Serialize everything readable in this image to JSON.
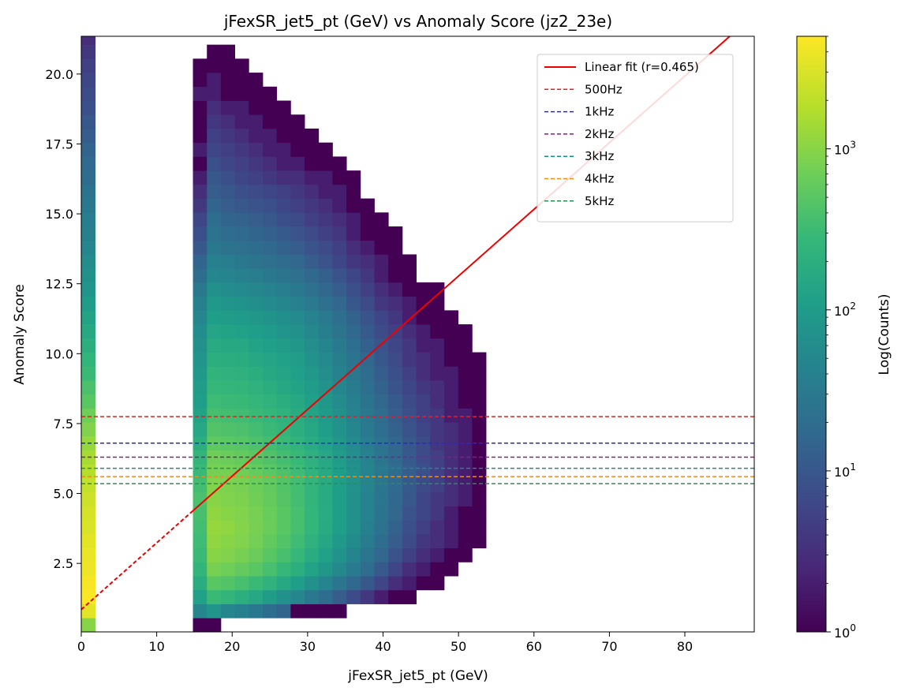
{
  "chart_data": {
    "type": "heatmap",
    "title": "jFexSR_jet5_pt (GeV) vs Anomaly Score (jz2_23e)",
    "xlabel": "jFexSR_jet5_pt (GeV)",
    "ylabel": "Anomaly Score",
    "colorbar_label": "Log(Counts)",
    "colorscale": "viridis",
    "color_scale_type": "log",
    "color_range": [
      1,
      5000
    ],
    "xlim": [
      0,
      89.2
    ],
    "ylim": [
      0.05,
      21.35
    ],
    "x_ticks": [
      0,
      10,
      20,
      30,
      40,
      50,
      60,
      70,
      80
    ],
    "x_tick_labels": [
      "0",
      "10",
      "20",
      "30",
      "40",
      "50",
      "60",
      "70",
      "80"
    ],
    "y_ticks": [
      2.5,
      5.0,
      7.5,
      10.0,
      12.5,
      15.0,
      17.5,
      20.0
    ],
    "y_tick_labels": [
      "2.5",
      "5.0",
      "7.5",
      "10.0",
      "12.5",
      "15.0",
      "17.5",
      "20.0"
    ],
    "colorbar_ticks": [
      1,
      10,
      100,
      1000
    ],
    "colorbar_tick_labels": [
      {
        "base": "10",
        "exp": "0"
      },
      {
        "base": "10",
        "exp": "1"
      },
      {
        "base": "10",
        "exp": "2"
      },
      {
        "base": "10",
        "exp": "3"
      }
    ],
    "bin_width_x": 1.85,
    "bin_height_y": 0.5,
    "columns": [
      {
        "x0": 0,
        "y_bottom": 0.05,
        "counts": [
          1000,
          3500,
          4800,
          4500,
          4000,
          3800,
          3500,
          3000,
          2800,
          2500,
          2200,
          1800,
          1500,
          1200,
          900,
          700,
          500,
          400,
          300,
          250,
          200,
          160,
          130,
          100,
          80,
          70,
          60,
          50,
          40,
          35,
          30,
          25,
          20,
          18,
          15,
          12,
          10,
          8,
          7,
          6,
          5,
          4,
          3,
          2
        ]
      },
      {
        "x0": 14.8,
        "y_bottom": 0.05,
        "counts": [
          1,
          50,
          120,
          180,
          250,
          300,
          320,
          350,
          380,
          400,
          350,
          300,
          250,
          200,
          150,
          130,
          110,
          100,
          90,
          80,
          70,
          60,
          50,
          40,
          30,
          20,
          15,
          10,
          8,
          6,
          4,
          3,
          2,
          1,
          2,
          1,
          1,
          1,
          2,
          1,
          1,
          0,
          0,
          0
        ]
      },
      {
        "x0": 16.65,
        "y_bottom": 0.05,
        "counts": [
          1,
          80,
          300,
          500,
          800,
          1000,
          1100,
          1200,
          1100,
          1000,
          900,
          800,
          700,
          550,
          450,
          380,
          320,
          280,
          240,
          200,
          170,
          140,
          110,
          90,
          70,
          50,
          40,
          30,
          25,
          20,
          15,
          12,
          10,
          8,
          6,
          5,
          4,
          3,
          2,
          2,
          1,
          1,
          0,
          0
        ]
      },
      {
        "x0": 18.5,
        "y_bottom": 0.05,
        "counts": [
          0,
          50,
          250,
          450,
          700,
          900,
          1000,
          1100,
          1000,
          900,
          850,
          780,
          650,
          520,
          420,
          360,
          300,
          260,
          220,
          190,
          160,
          130,
          100,
          80,
          60,
          45,
          35,
          25,
          20,
          15,
          12,
          10,
          8,
          6,
          5,
          4,
          3,
          2,
          1,
          1,
          1,
          1,
          0,
          0
        ]
      },
      {
        "x0": 20.35,
        "y_bottom": 0.05,
        "counts": [
          0,
          40,
          200,
          380,
          600,
          800,
          900,
          950,
          900,
          850,
          800,
          720,
          600,
          480,
          400,
          340,
          290,
          250,
          210,
          180,
          150,
          120,
          95,
          75,
          55,
          40,
          30,
          22,
          18,
          14,
          10,
          8,
          6,
          5,
          4,
          3,
          2,
          2,
          1,
          1,
          1,
          0,
          0,
          0
        ]
      },
      {
        "x0": 22.2,
        "y_bottom": 0.05,
        "counts": [
          0,
          30,
          150,
          300,
          500,
          650,
          750,
          800,
          780,
          720,
          680,
          620,
          520,
          420,
          350,
          300,
          260,
          220,
          190,
          160,
          130,
          110,
          85,
          65,
          50,
          35,
          25,
          20,
          15,
          12,
          9,
          7,
          5,
          4,
          3,
          2,
          2,
          1,
          1,
          1,
          0,
          0,
          0,
          0
        ]
      },
      {
        "x0": 24.05,
        "y_bottom": 0.05,
        "counts": [
          0,
          20,
          100,
          220,
          380,
          500,
          580,
          650,
          640,
          600,
          570,
          520,
          440,
          360,
          300,
          260,
          220,
          190,
          160,
          140,
          115,
          95,
          75,
          55,
          42,
          30,
          22,
          17,
          13,
          10,
          8,
          6,
          4,
          3,
          2,
          2,
          1,
          1,
          1,
          0,
          0,
          0,
          0,
          0
        ]
      },
      {
        "x0": 25.9,
        "y_bottom": 0.05,
        "counts": [
          0,
          15,
          70,
          160,
          280,
          380,
          450,
          500,
          500,
          470,
          450,
          420,
          360,
          300,
          250,
          220,
          190,
          160,
          140,
          120,
          100,
          80,
          65,
          48,
          36,
          26,
          19,
          14,
          11,
          8,
          6,
          5,
          3,
          2,
          2,
          1,
          1,
          1,
          0,
          0,
          0,
          0,
          0,
          0
        ]
      },
      {
        "x0": 27.75,
        "y_bottom": 0.05,
        "counts": [
          0,
          1,
          50,
          110,
          200,
          280,
          330,
          380,
          380,
          360,
          350,
          330,
          290,
          240,
          200,
          180,
          155,
          130,
          115,
          100,
          85,
          68,
          55,
          40,
          30,
          22,
          16,
          12,
          9,
          7,
          5,
          4,
          3,
          2,
          1,
          1,
          1,
          0,
          0,
          0,
          0,
          0,
          0,
          0
        ]
      },
      {
        "x0": 29.6,
        "y_bottom": 0.05,
        "counts": [
          0,
          1,
          30,
          70,
          130,
          180,
          220,
          260,
          260,
          250,
          245,
          235,
          210,
          175,
          150,
          135,
          118,
          100,
          88,
          75,
          64,
          52,
          42,
          31,
          23,
          17,
          12,
          9,
          7,
          5,
          4,
          3,
          2,
          1,
          1,
          1,
          0,
          0,
          0,
          0,
          0,
          0,
          0,
          0
        ]
      },
      {
        "x0": 31.45,
        "y_bottom": 0.05,
        "counts": [
          0,
          1,
          20,
          45,
          85,
          120,
          145,
          170,
          175,
          170,
          170,
          165,
          150,
          125,
          108,
          98,
          86,
          73,
          64,
          55,
          47,
          38,
          31,
          23,
          17,
          13,
          9,
          7,
          5,
          4,
          3,
          2,
          2,
          1,
          1,
          0,
          0,
          0,
          0,
          0,
          0,
          0,
          0,
          0
        ]
      },
      {
        "x0": 33.3,
        "y_bottom": 0.05,
        "counts": [
          0,
          1,
          12,
          28,
          52,
          75,
          92,
          108,
          112,
          110,
          112,
          110,
          100,
          85,
          74,
          67,
          59,
          50,
          44,
          38,
          32,
          26,
          21,
          16,
          12,
          9,
          6,
          5,
          4,
          3,
          2,
          2,
          1,
          1,
          0,
          0,
          0,
          0,
          0,
          0,
          0,
          0,
          0,
          0
        ]
      },
      {
        "x0": 35.15,
        "y_bottom": 0.05,
        "counts": [
          0,
          0,
          7,
          17,
          32,
          46,
          57,
          67,
          70,
          70,
          72,
          71,
          65,
          56,
          49,
          44,
          39,
          33,
          29,
          25,
          21,
          17,
          14,
          10,
          8,
          6,
          4,
          3,
          2,
          2,
          1,
          1,
          1,
          0,
          0,
          0,
          0,
          0,
          0,
          0,
          0,
          0,
          0,
          0
        ]
      },
      {
        "x0": 37.0,
        "y_bottom": 0.05,
        "counts": [
          0,
          0,
          4,
          10,
          19,
          27,
          34,
          40,
          42,
          43,
          45,
          45,
          42,
          36,
          32,
          29,
          25,
          21,
          19,
          16,
          13,
          11,
          9,
          7,
          5,
          4,
          3,
          2,
          1,
          1,
          1,
          0,
          0,
          0,
          0,
          0,
          0,
          0,
          0,
          0,
          0,
          0,
          0,
          0
        ]
      },
      {
        "x0": 38.85,
        "y_bottom": 0.05,
        "counts": [
          0,
          0,
          2,
          6,
          11,
          16,
          20,
          24,
          26,
          27,
          28,
          29,
          27,
          24,
          21,
          19,
          16,
          14,
          12,
          10,
          9,
          7,
          6,
          4,
          3,
          2,
          2,
          1,
          1,
          1,
          0,
          0,
          0,
          0,
          0,
          0,
          0,
          0,
          0,
          0,
          0,
          0,
          0,
          0
        ]
      },
      {
        "x0": 40.7,
        "y_bottom": 0.05,
        "counts": [
          0,
          0,
          1,
          3,
          6,
          9,
          12,
          14,
          16,
          17,
          18,
          19,
          18,
          16,
          14,
          12,
          11,
          9,
          8,
          7,
          6,
          5,
          4,
          3,
          2,
          1,
          1,
          1,
          1,
          0,
          0,
          0,
          0,
          0,
          0,
          0,
          0,
          0,
          0,
          0,
          0,
          0,
          0,
          0
        ]
      },
      {
        "x0": 42.55,
        "y_bottom": 0.05,
        "counts": [
          0,
          0,
          1,
          2,
          3,
          5,
          7,
          8,
          9,
          10,
          11,
          12,
          11,
          10,
          9,
          8,
          7,
          6,
          5,
          4,
          4,
          3,
          2,
          2,
          1,
          1,
          1,
          0,
          0,
          0,
          0,
          0,
          0,
          0,
          0,
          0,
          0,
          0,
          0,
          0,
          0,
          0,
          0,
          0
        ]
      },
      {
        "x0": 44.4,
        "y_bottom": 0.05,
        "counts": [
          0,
          0,
          0,
          1,
          2,
          3,
          4,
          5,
          6,
          6,
          7,
          8,
          7,
          7,
          6,
          5,
          5,
          4,
          3,
          3,
          2,
          2,
          1,
          1,
          1,
          0,
          0,
          0,
          0,
          0,
          0,
          0,
          0,
          0,
          0,
          0,
          0,
          0,
          0,
          0,
          0,
          0,
          0,
          0
        ]
      },
      {
        "x0": 46.25,
        "y_bottom": 0.05,
        "counts": [
          0,
          0,
          0,
          1,
          1,
          2,
          3,
          3,
          4,
          4,
          5,
          5,
          5,
          4,
          4,
          4,
          3,
          3,
          2,
          2,
          2,
          1,
          1,
          1,
          1,
          0,
          0,
          0,
          0,
          0,
          0,
          0,
          0,
          0,
          0,
          0,
          0,
          0,
          0,
          0,
          0,
          0,
          0,
          0
        ]
      },
      {
        "x0": 48.1,
        "y_bottom": 0.05,
        "counts": [
          0,
          0,
          0,
          0,
          1,
          1,
          2,
          2,
          2,
          3,
          3,
          3,
          3,
          3,
          3,
          2,
          2,
          2,
          2,
          1,
          1,
          1,
          1,
          0,
          0,
          0,
          0,
          0,
          0,
          0,
          0,
          0,
          0,
          0,
          0,
          0,
          0,
          0,
          0,
          0,
          0,
          0,
          0,
          0
        ]
      },
      {
        "x0": 49.95,
        "y_bottom": 0.05,
        "counts": [
          0,
          0,
          0,
          0,
          0,
          1,
          1,
          1,
          1,
          2,
          2,
          2,
          2,
          2,
          2,
          2,
          1,
          1,
          1,
          1,
          1,
          1,
          0,
          0,
          0,
          0,
          0,
          0,
          0,
          0,
          0,
          0,
          0,
          0,
          0,
          0,
          0,
          0,
          0,
          0,
          0,
          0,
          0,
          0
        ]
      },
      {
        "x0": 51.8,
        "y_bottom": 0.05,
        "counts": [
          0,
          0,
          0,
          0,
          0,
          0,
          1,
          1,
          1,
          1,
          1,
          1,
          1,
          1,
          1,
          1,
          1,
          1,
          1,
          1,
          0,
          0,
          0,
          0,
          0,
          0,
          0,
          0,
          0,
          0,
          0,
          0,
          0,
          0,
          0,
          0,
          0,
          0,
          0,
          0,
          0,
          0,
          0,
          0
        ]
      }
    ],
    "overlay_lines": [
      {
        "name": "Linear fit (r=0.465)",
        "type": "fit",
        "color": "#ee0000",
        "style": "solid",
        "intercept": 0.85,
        "slope": 0.2385,
        "dashed_below_x": 14.8
      },
      {
        "name": "500Hz",
        "type": "threshold",
        "y": 7.75,
        "color": "#ee1c1c",
        "style": "dashed"
      },
      {
        "name": "1kHz",
        "type": "threshold",
        "y": 6.8,
        "color": "#2424e6",
        "style": "dashed"
      },
      {
        "name": "2kHz",
        "type": "threshold",
        "y": 6.3,
        "color": "#8b1a8b",
        "style": "dashed"
      },
      {
        "name": "3kHz",
        "type": "threshold",
        "y": 5.9,
        "color": "#1a8a8a",
        "style": "dashed"
      },
      {
        "name": "4kHz",
        "type": "threshold",
        "y": 5.6,
        "color": "#f08c1a",
        "style": "dashed"
      },
      {
        "name": "5kHz",
        "type": "threshold",
        "y": 5.35,
        "color": "#2e8b57",
        "style": "dashed"
      }
    ],
    "legend_position": "top-right",
    "grid": false
  }
}
